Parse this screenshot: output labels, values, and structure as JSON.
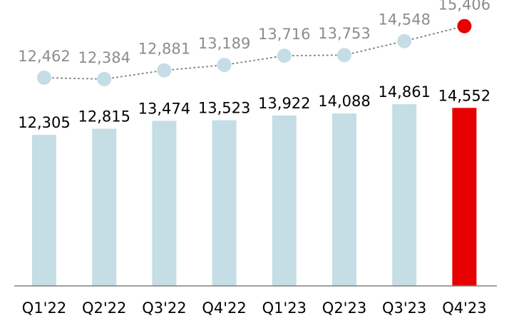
{
  "chart_data": {
    "type": "bar",
    "categories": [
      "Q1'22",
      "Q2'22",
      "Q3'22",
      "Q4'22",
      "Q1'23",
      "Q2'23",
      "Q3'23",
      "Q4'23"
    ],
    "series": [
      {
        "type": "bar",
        "values": [
          12305,
          12815,
          13474,
          13523,
          13922,
          14088,
          14861,
          14552
        ],
        "labels": [
          "12,305",
          "12,815",
          "13,474",
          "13,523",
          "13,922",
          "14,088",
          "14,861",
          "14,552"
        ]
      },
      {
        "type": "line",
        "values": [
          12462,
          12384,
          12881,
          13189,
          13716,
          13753,
          14548,
          15406
        ],
        "labels": [
          "12,462",
          "12,384",
          "12,881",
          "13,189",
          "13,716",
          "13,753",
          "14,548",
          "15,406"
        ]
      }
    ],
    "highlight_index": 7,
    "title": "",
    "xlabel": "",
    "ylabel": "",
    "grid": false,
    "colors": {
      "bar": "#c5dde5",
      "bar_highlight": "#e60000",
      "line_marker": "#c5dde5",
      "line_marker_highlight": "#e60000",
      "line_dots": "#808080",
      "axis": "#808080",
      "bar_label": "#000000",
      "line_label": "#8c8c8c"
    }
  }
}
